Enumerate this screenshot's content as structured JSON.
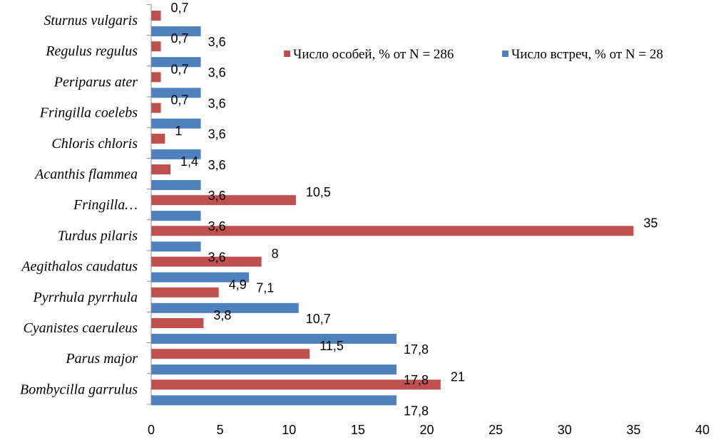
{
  "chart_data": {
    "type": "bar",
    "orientation": "horizontal",
    "categories": [
      "Bombycilla garrulus",
      "Parus major",
      "Cyanistes caeruleus",
      "Pyrrhula pyrrhula",
      "Aegithalos caudatus",
      "Turdus pilaris",
      "Fringilla…",
      "Acanthis flammea",
      "Chloris chloris",
      "Fringilla coelebs",
      "Periparus ater",
      "Regulus regulus",
      "Sturnus vulgaris"
    ],
    "series": [
      {
        "name": "Число особей, % от N = 286",
        "color": "#c0504d",
        "values": [
          21,
          11.5,
          3.8,
          4.9,
          8,
          35,
          10.5,
          1.4,
          1,
          0.7,
          0.7,
          0.7,
          0.7
        ],
        "labels": [
          "21",
          "11,5",
          "3,8",
          "4,9",
          "8",
          "35",
          "10,5",
          "1,4",
          "1",
          "0,7",
          "0,7",
          "0,7",
          "0,7"
        ]
      },
      {
        "name": "Число встреч, % от N = 28",
        "color": "#4f81bd",
        "values": [
          17.8,
          17.8,
          17.8,
          10.7,
          7.1,
          3.6,
          3.6,
          3.6,
          3.6,
          3.6,
          3.6,
          3.6,
          3.6
        ],
        "labels": [
          "17,8",
          "17,8",
          "17,8",
          "10,7",
          "7,1",
          "3,6",
          "3,6",
          "3,6",
          "3,6",
          "3,6",
          "3,6",
          "3,6",
          "3,6"
        ]
      }
    ],
    "xlim": [
      0,
      40
    ],
    "xticks": [
      "0",
      "5",
      "10",
      "15",
      "20",
      "25",
      "30",
      "35",
      "40"
    ],
    "grid": false,
    "legend_position": "top-right"
  }
}
